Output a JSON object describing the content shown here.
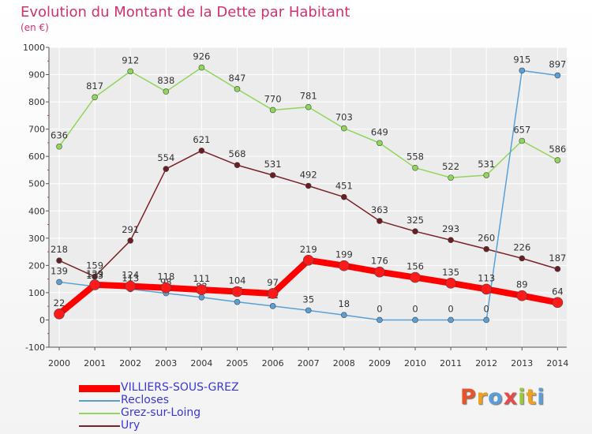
{
  "title": "Evolution du Montant de la Dette par Habitant",
  "unit_label": "(en €)",
  "brand": "Proxiti",
  "chart_data": {
    "type": "line",
    "title": "Evolution du Montant de la Dette par Habitant",
    "ylabel": "(en €)",
    "x": [
      2000,
      2001,
      2002,
      2003,
      2004,
      2005,
      2006,
      2007,
      2008,
      2009,
      2010,
      2011,
      2012,
      2013,
      2014
    ],
    "ylim": [
      -100,
      1000
    ],
    "yticks": [
      -100,
      0,
      100,
      200,
      300,
      400,
      500,
      600,
      700,
      800,
      900,
      1000
    ],
    "grid": true,
    "legend_position": "bottom-left",
    "series": [
      {
        "name": "VILLIERS-SOUS-GREZ",
        "color": "#ff0000",
        "values": [
          22,
          129,
          124,
          118,
          111,
          104,
          97,
          219,
          199,
          176,
          156,
          135,
          113,
          89,
          64
        ],
        "labels": [
          "22",
          "129",
          "124",
          "118",
          "111",
          "104",
          "97",
          "219",
          "199",
          "176",
          "156",
          "135",
          "113",
          "89",
          "64"
        ]
      },
      {
        "name": "Recloses",
        "color": "#5aa0d6",
        "values": [
          139,
          123,
          113,
          98,
          83,
          66,
          51,
          35,
          18,
          0,
          0,
          0,
          0,
          915,
          897
        ],
        "labels": [
          "139",
          "123",
          "113",
          "98",
          "83",
          "66",
          "51",
          "35",
          "18",
          "0",
          "0",
          "0",
          "0",
          "915",
          "897"
        ]
      },
      {
        "name": "Grez-sur-Loing",
        "color": "#90d65a",
        "values": [
          636,
          817,
          912,
          838,
          926,
          847,
          770,
          781,
          703,
          649,
          558,
          522,
          531,
          657,
          586
        ],
        "labels": [
          "636",
          "817",
          "912",
          "838",
          "926",
          "847",
          "770",
          "781",
          "703",
          "649",
          "558",
          "522",
          "531",
          "657",
          "586"
        ]
      },
      {
        "name": "Ury",
        "color": "#7a2226",
        "values": [
          218,
          159,
          291,
          554,
          621,
          568,
          531,
          492,
          451,
          363,
          325,
          293,
          260,
          226,
          187
        ],
        "labels": [
          "218",
          "159",
          "291",
          "554",
          "621",
          "568",
          "531",
          "492",
          "451",
          "363",
          "325",
          "293",
          "260",
          "226",
          "187"
        ]
      }
    ]
  }
}
